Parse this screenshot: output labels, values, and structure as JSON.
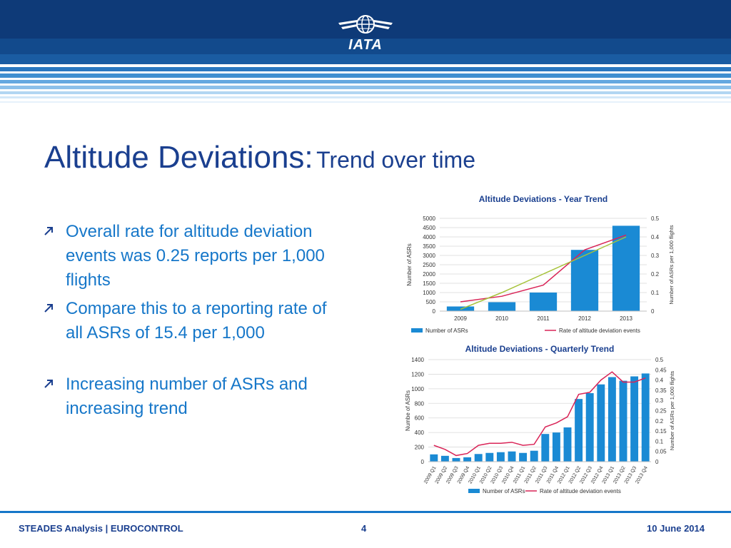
{
  "brand": {
    "logo_text": "IATA",
    "logo_icon": "globe-wings-icon"
  },
  "slide": {
    "title_main": "Altitude Deviations:",
    "title_sub": "Trend over time",
    "bullets": [
      "Overall rate for altitude deviation events was 0.25 reports per 1,000 flights",
      "Compare this to a reporting rate of all ASRs of 15.4 per 1,000",
      "Increasing number of ASRs and increasing trend"
    ],
    "bullet_icon": "diagonal-arrow-icon"
  },
  "footer": {
    "left": "STEADES Analysis | EUROCONTROL",
    "page": "4",
    "date": "10 June 2014"
  },
  "colors": {
    "navy": "#0e3a78",
    "title": "#1a3f8f",
    "accent": "#1677c9",
    "bar": "#1a8ad4",
    "rate_line": "#d92457",
    "trend_line": "#a6c23a"
  },
  "chart_data": [
    {
      "type": "bar",
      "title": "Altitude Deviations - Year Trend",
      "categories": [
        "2009",
        "2010",
        "2011",
        "2012",
        "2013"
      ],
      "ylabel": "Number of ASRs",
      "y2label": "Number of ASRs per 1,000 flights",
      "ylim": [
        0,
        5000
      ],
      "y2lim": [
        0,
        0.5
      ],
      "yticks": [
        "0",
        "500",
        "1000",
        "1500",
        "2000",
        "2500",
        "3000",
        "3500",
        "4000",
        "4500",
        "5000"
      ],
      "y2ticks": [
        "0",
        "0.1",
        "0.2",
        "0.3",
        "0.4",
        "0.5"
      ],
      "legend": "bottom",
      "series": [
        {
          "name": "Number of ASRs",
          "type": "bar",
          "values": [
            250,
            480,
            1000,
            3300,
            4600
          ]
        },
        {
          "name": "Rate of altitude deviation events",
          "type": "line",
          "axis": "y2",
          "values": [
            0.05,
            0.08,
            0.14,
            0.33,
            0.41
          ]
        },
        {
          "type": "trend",
          "axis": "y2",
          "values": [
            0.01,
            0.1,
            0.2,
            0.3,
            0.4
          ]
        }
      ]
    },
    {
      "type": "bar",
      "title": "Altitude Deviations - Quarterly Trend",
      "categories": [
        "2009 Q1",
        "2009 Q2",
        "2009 Q3",
        "2009 Q4",
        "2010 Q1",
        "2010 Q2",
        "2010 Q3",
        "2010 Q4",
        "2011 Q1",
        "2011 Q2",
        "2011 Q3",
        "2011 Q4",
        "2012 Q1",
        "2012 Q2",
        "2012 Q3",
        "2012 Q4",
        "2013 Q1",
        "2013 Q2",
        "2013 Q3",
        "2013 Q4"
      ],
      "ylabel": "Numbe of ASRs",
      "y2label": "Number of ASRs per 1,000 flights",
      "ylim": [
        0,
        1400
      ],
      "y2lim": [
        0,
        0.5
      ],
      "yticks": [
        "0",
        "200",
        "400",
        "600",
        "800",
        "1000",
        "1200",
        "1400"
      ],
      "y2ticks": [
        "0",
        "0.05",
        "0.1",
        "0.15",
        "0.2",
        "0.25",
        "0.3",
        "0.35",
        "0.4",
        "0.45",
        "0.5"
      ],
      "legend": "bottom",
      "series": [
        {
          "name": "Number of ASRs",
          "type": "bar",
          "values": [
            100,
            80,
            50,
            60,
            105,
            120,
            130,
            140,
            120,
            150,
            380,
            400,
            470,
            860,
            940,
            1060,
            1160,
            1110,
            1170,
            1210
          ]
        },
        {
          "name": "Rate of altitude deviation events",
          "type": "line",
          "axis": "y2",
          "values": [
            0.08,
            0.06,
            0.03,
            0.04,
            0.08,
            0.09,
            0.09,
            0.095,
            0.08,
            0.085,
            0.17,
            0.19,
            0.22,
            0.33,
            0.34,
            0.4,
            0.44,
            0.39,
            0.39,
            0.41
          ]
        }
      ]
    }
  ]
}
